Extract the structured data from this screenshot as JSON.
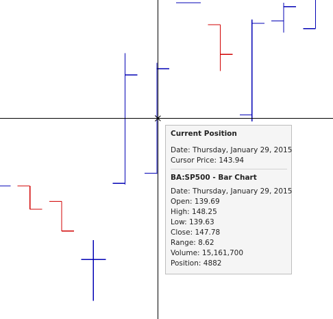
{
  "chart_data": {
    "type": "ohlc",
    "colors": {
      "up": "#0000b4",
      "down": "#d00000",
      "crosshair": "#000000"
    },
    "bars": [
      {
        "open": 138.7,
        "high": 138.7,
        "low": 138.7,
        "close": 138.7,
        "dir": "up"
      },
      {
        "open": 138.7,
        "high": 138.7,
        "low": 136.9,
        "close": 136.9,
        "dir": "down"
      },
      {
        "open": 137.5,
        "high": 137.5,
        "low": 135.2,
        "close": 135.2,
        "dir": "down"
      },
      {
        "open": 133.0,
        "high": 134.5,
        "low": 129.8,
        "close": 133.0,
        "dir": "up"
      },
      {
        "open": 138.9,
        "high": 149.0,
        "low": 138.8,
        "close": 147.3,
        "dir": "up"
      },
      {
        "open": 139.69,
        "high": 148.25,
        "low": 139.63,
        "close": 147.78,
        "dir": "up"
      },
      {
        "open": 152.9,
        "high": 152.9,
        "low": 152.9,
        "close": 152.9,
        "dir": "up"
      },
      {
        "open": 151.2,
        "high": 151.2,
        "low": 147.6,
        "close": 148.9,
        "dir": "down"
      },
      {
        "open": 144.2,
        "high": 151.6,
        "low": 143.7,
        "close": 151.3,
        "dir": "up"
      },
      {
        "open": 151.5,
        "high": 152.9,
        "low": 150.6,
        "close": 152.6,
        "dir": "up"
      },
      {
        "open": 150.9,
        "high": 154.3,
        "low": 150.9,
        "close": 153.4,
        "dir": "up"
      },
      {
        "open": 153.3,
        "high": 155.0,
        "low": 152.3,
        "close": 154.0,
        "dir": "up"
      }
    ],
    "crosshair": {
      "bar_index": 5,
      "price": 143.94
    }
  },
  "tooltip": {
    "current_title": "Current Position",
    "current_date": "Date: Thursday, January 29, 2015",
    "cursor_price": "Cursor Price: 143.94",
    "series_title": "BA:SP500 - Bar Chart",
    "date": "Date: Thursday, January 29, 2015",
    "open": "Open: 139.69",
    "high": "High: 148.25",
    "low": "Low: 139.63",
    "close": "Close: 147.78",
    "range": "Range: 8.62",
    "volume": "Volume: 15,161,700",
    "position": "Position: 4882"
  }
}
